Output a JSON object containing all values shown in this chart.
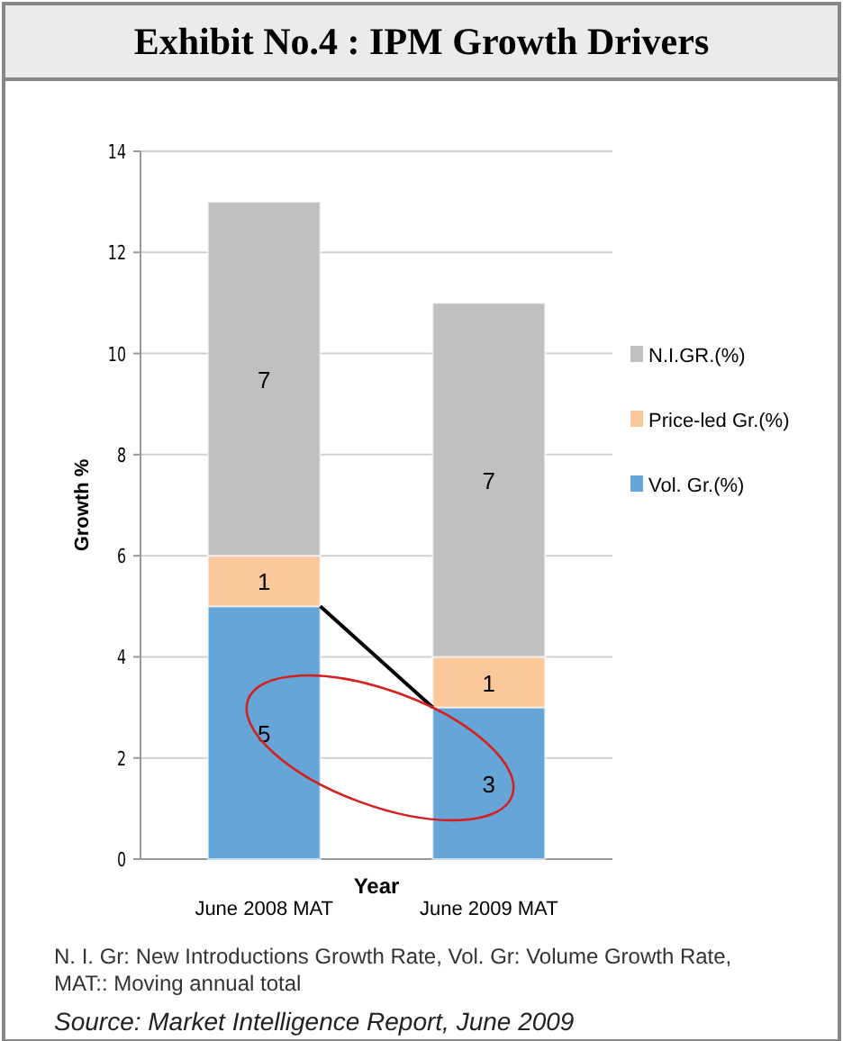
{
  "chart_data": {
    "type": "bar",
    "title": "Exhibit No.4 : IPM Growth Drivers",
    "xlabel": "Year",
    "ylabel": "Growth %",
    "categories": [
      "June 2008 MAT",
      "June 2009 MAT"
    ],
    "series": [
      {
        "name": "Vol. Gr.(%)",
        "color": "#65a5d8",
        "values": [
          5,
          3
        ]
      },
      {
        "name": "Price-led Gr.(%)",
        "color": "#fac89a",
        "values": [
          1,
          1
        ]
      },
      {
        "name": "N.I.GR.(%)",
        "color": "#c0c0c0",
        "values": [
          7,
          7
        ]
      }
    ],
    "stacked": true,
    "data_labels": true,
    "ylim": [
      0,
      14
    ],
    "yticks": [
      0,
      2,
      4,
      6,
      8,
      10,
      12,
      14
    ],
    "grid": "y",
    "legend": "right",
    "annotations": [
      "N. I. Gr: New Introductions Growth Rate, Vol. Gr: Volume Growth Rate, MAT:: Moving annual total",
      "Source: Market Intelligence Report, June 2009"
    ]
  }
}
